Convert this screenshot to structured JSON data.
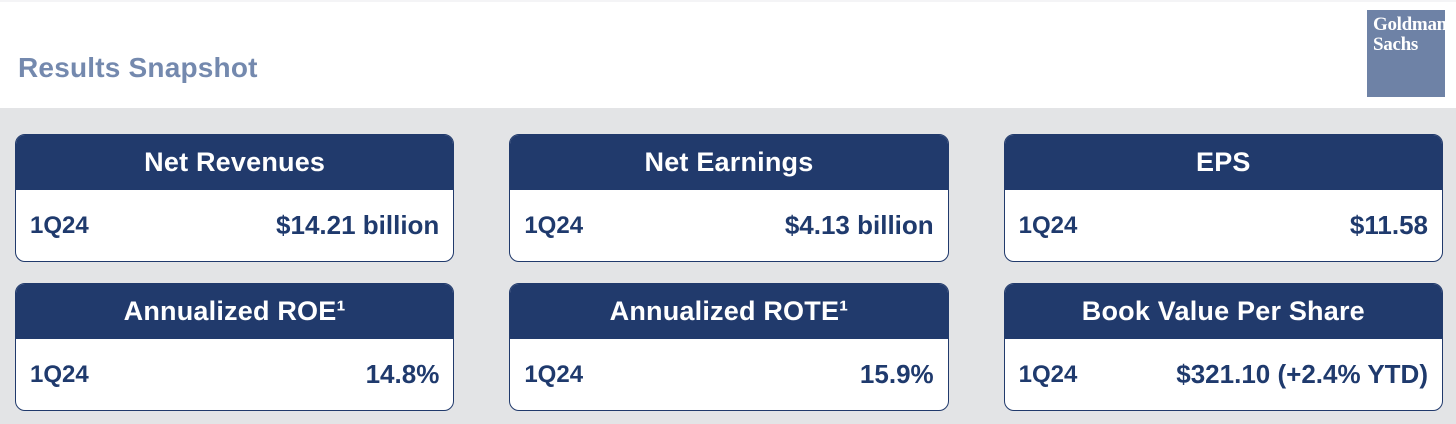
{
  "page": {
    "title": "Results Snapshot"
  },
  "logo": {
    "name": "Goldman Sachs",
    "line1": "Goldman",
    "line2": "Sachs"
  },
  "colors": {
    "navy": "#213A6C",
    "title_blue": "#7489AE",
    "logo_background": "#6E82A6",
    "page_background": "#E3E4E6",
    "card_background": "#FFFFFF",
    "header_text": "#FFFFFF",
    "value_text": "#1F3A6D"
  },
  "cards": [
    {
      "title": "Net Revenues",
      "period": "1Q24",
      "value": "$14.21 billion"
    },
    {
      "title": "Net Earnings",
      "period": "1Q24",
      "value": "$4.13 billion"
    },
    {
      "title": "EPS",
      "period": "1Q24",
      "value": "$11.58"
    },
    {
      "title": "Annualized ROE¹",
      "period": "1Q24",
      "value": "14.8%"
    },
    {
      "title": "Annualized ROTE¹",
      "period": "1Q24",
      "value": "15.9%"
    },
    {
      "title": "Book Value Per Share",
      "period": "1Q24",
      "value": "$321.10 (+2.4% YTD)"
    }
  ]
}
